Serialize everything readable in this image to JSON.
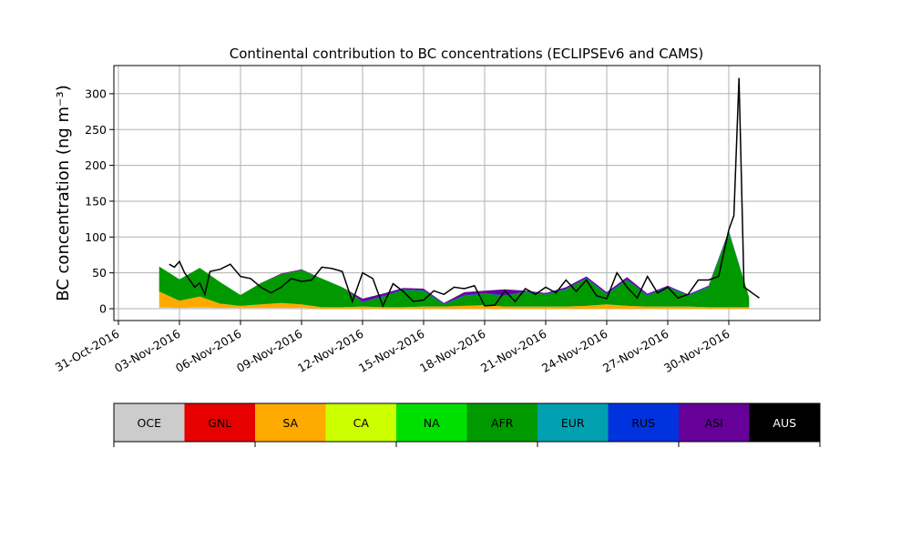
{
  "chart_data": {
    "type": "area",
    "stacked": true,
    "title": "Continental contribution to BC concentrations (ECLIPSEv6 and CAMS)",
    "ylabel": "BC concentration (ng m⁻³)",
    "xlabel": "",
    "ylim": [
      -15,
      340
    ],
    "xlim": [
      "2016-10-31",
      "2016-12-03"
    ],
    "grid": true,
    "x_ticks": [
      "31-Oct-2016",
      "03-Nov-2016",
      "06-Nov-2016",
      "09-Nov-2016",
      "12-Nov-2016",
      "15-Nov-2016",
      "18-Nov-2016",
      "21-Nov-2016",
      "24-Nov-2016",
      "27-Nov-2016",
      "30-Nov-2016"
    ],
    "y_ticks": [
      "0",
      "50",
      "100",
      "150",
      "200",
      "250",
      "300"
    ],
    "x": [
      "2016-11-02",
      "2016-11-03",
      "2016-11-04",
      "2016-11-05",
      "2016-11-06",
      "2016-11-07",
      "2016-11-08",
      "2016-11-09",
      "2016-11-10",
      "2016-11-11",
      "2016-11-12",
      "2016-11-13",
      "2016-11-14",
      "2016-11-15",
      "2016-11-16",
      "2016-11-17",
      "2016-11-18",
      "2016-11-19",
      "2016-11-20",
      "2016-11-21",
      "2016-11-22",
      "2016-11-23",
      "2016-11-24",
      "2016-11-25",
      "2016-11-26",
      "2016-11-27",
      "2016-11-28",
      "2016-11-29",
      "2016-11-30",
      "2016-12-01"
    ],
    "series": [
      {
        "name": "OCE",
        "color": "#cccccc",
        "values": [
          2,
          1,
          2,
          1,
          1,
          1,
          1,
          1,
          0,
          0,
          0,
          0,
          0,
          0,
          0,
          0,
          0,
          0,
          0,
          0,
          0,
          0,
          0,
          0,
          0,
          0,
          0,
          0,
          0,
          0
        ]
      },
      {
        "name": "GNL",
        "color": "#e60000",
        "values": [
          0,
          0,
          0,
          0,
          0,
          0,
          0,
          0,
          0,
          0,
          0,
          0,
          0,
          0,
          0,
          0,
          0,
          0,
          0,
          0,
          0,
          0,
          0,
          0,
          0,
          0,
          0,
          0,
          0,
          0
        ]
      },
      {
        "name": "SA",
        "color": "#ffaa00",
        "values": [
          22,
          10,
          15,
          6,
          3,
          5,
          7,
          5,
          2,
          2,
          3,
          2,
          2,
          3,
          3,
          4,
          5,
          3,
          3,
          3,
          3,
          4,
          6,
          4,
          3,
          3,
          3,
          2,
          2,
          2
        ]
      },
      {
        "name": "CA",
        "color": "#ccff00",
        "values": [
          0,
          0,
          0,
          0,
          0,
          0,
          0,
          0,
          0,
          0,
          0,
          0,
          0,
          0,
          0,
          0,
          0,
          0,
          0,
          0,
          0,
          0,
          0,
          0,
          0,
          0,
          0,
          0,
          0,
          0
        ]
      },
      {
        "name": "NA",
        "color": "#00e000",
        "values": [
          0,
          0,
          0,
          0,
          0,
          0,
          0,
          0,
          0,
          0,
          0,
          0,
          0,
          0,
          0,
          0,
          0,
          0,
          0,
          0,
          0,
          0,
          0,
          0,
          0,
          0,
          0,
          0,
          0,
          0
        ]
      },
      {
        "name": "AFR",
        "color": "#009900",
        "values": [
          35,
          30,
          40,
          30,
          15,
          30,
          40,
          48,
          40,
          28,
          6,
          15,
          24,
          22,
          3,
          14,
          16,
          15,
          20,
          17,
          24,
          38,
          14,
          36,
          15,
          27,
          15,
          28,
          105,
          14
        ]
      },
      {
        "name": "EUR",
        "color": "#00a0b0",
        "values": [
          0,
          0,
          0,
          0,
          0,
          0,
          0,
          0,
          0,
          0,
          0,
          0,
          0,
          0,
          0,
          0,
          0,
          0,
          0,
          0,
          0,
          0,
          0,
          0,
          0,
          0,
          0,
          0,
          0,
          0
        ]
      },
      {
        "name": "RUS",
        "color": "#0033dd",
        "values": [
          0,
          0,
          0,
          0,
          0,
          0,
          0,
          0,
          0,
          0,
          1,
          1,
          1,
          1,
          1,
          1,
          1,
          1,
          1,
          1,
          1,
          1,
          1,
          1,
          1,
          1,
          1,
          1,
          1,
          0
        ]
      },
      {
        "name": "ASI",
        "color": "#660099",
        "values": [
          0,
          0,
          0,
          0,
          0,
          0,
          1,
          1,
          0,
          0,
          4,
          3,
          2,
          2,
          1,
          4,
          3,
          8,
          1,
          1,
          2,
          2,
          2,
          3,
          2,
          1,
          1,
          1,
          1,
          0
        ]
      },
      {
        "name": "AUS",
        "color": "#000000",
        "values": [
          0,
          0,
          0,
          0,
          0,
          0,
          0,
          0,
          0,
          0,
          0,
          0,
          0,
          0,
          0,
          0,
          0,
          0,
          0,
          0,
          0,
          0,
          0,
          0,
          0,
          0,
          0,
          0,
          0,
          0
        ]
      }
    ],
    "total": {
      "x": [
        "2016-11-02 12:00",
        "2016-11-02 18:00",
        "2016-11-03 00:00",
        "2016-11-03 06:00",
        "2016-11-03 12:00",
        "2016-11-03 18:00",
        "2016-11-04 00:00",
        "2016-11-04 06:00",
        "2016-11-04 12:00",
        "2016-11-05 00:00",
        "2016-11-05 12:00",
        "2016-11-06 00:00",
        "2016-11-06 12:00",
        "2016-11-07 00:00",
        "2016-11-07 12:00",
        "2016-11-08 00:00",
        "2016-11-08 12:00",
        "2016-11-09 00:00",
        "2016-11-09 12:00",
        "2016-11-10 00:00",
        "2016-11-10 12:00",
        "2016-11-11 00:00",
        "2016-11-11 12:00",
        "2016-11-12 00:00",
        "2016-11-12 12:00",
        "2016-11-13 00:00",
        "2016-11-13 12:00",
        "2016-11-14 00:00",
        "2016-11-14 12:00",
        "2016-11-15 00:00",
        "2016-11-15 12:00",
        "2016-11-16 00:00",
        "2016-11-16 12:00",
        "2016-11-17 00:00",
        "2016-11-17 12:00",
        "2016-11-18 00:00",
        "2016-11-18 12:00",
        "2016-11-19 00:00",
        "2016-11-19 12:00",
        "2016-11-20 00:00",
        "2016-11-20 12:00",
        "2016-11-21 00:00",
        "2016-11-21 12:00",
        "2016-11-22 00:00",
        "2016-11-22 12:00",
        "2016-11-23 00:00",
        "2016-11-23 12:00",
        "2016-11-24 00:00",
        "2016-11-24 12:00",
        "2016-11-25 00:00",
        "2016-11-25 12:00",
        "2016-11-26 00:00",
        "2016-11-26 12:00",
        "2016-11-27 00:00",
        "2016-11-27 12:00",
        "2016-11-28 00:00",
        "2016-11-28 12:00",
        "2016-11-29 00:00",
        "2016-11-29 12:00",
        "2016-11-30 00:00",
        "2016-11-30 06:00",
        "2016-11-30 12:00",
        "2016-11-30 18:00",
        "2016-12-01 00:00",
        "2016-12-01 06:00",
        "2016-12-01 12:00"
      ],
      "values": [
        62,
        58,
        66,
        50,
        40,
        30,
        36,
        20,
        52,
        55,
        62,
        45,
        42,
        30,
        22,
        30,
        42,
        38,
        40,
        58,
        56,
        52,
        10,
        50,
        42,
        4,
        35,
        24,
        10,
        12,
        25,
        20,
        30,
        28,
        32,
        4,
        5,
        25,
        10,
        28,
        20,
        30,
        22,
        40,
        24,
        40,
        18,
        14,
        50,
        30,
        15,
        45,
        22,
        30,
        15,
        20,
        40,
        40,
        45,
        110,
        130,
        322,
        30,
        25,
        20,
        15
      ]
    }
  },
  "legend": {
    "items": [
      {
        "label": "OCE",
        "color": "#cccccc"
      },
      {
        "label": "GNL",
        "color": "#e60000"
      },
      {
        "label": "SA",
        "color": "#ffaa00"
      },
      {
        "label": "CA",
        "color": "#ccff00"
      },
      {
        "label": "NA",
        "color": "#00e000"
      },
      {
        "label": "AFR",
        "color": "#009900"
      },
      {
        "label": "EUR",
        "color": "#00a0b0"
      },
      {
        "label": "RUS",
        "color": "#0033dd"
      },
      {
        "label": "ASI",
        "color": "#660099"
      },
      {
        "label": "AUS",
        "color": "#000000"
      }
    ]
  }
}
